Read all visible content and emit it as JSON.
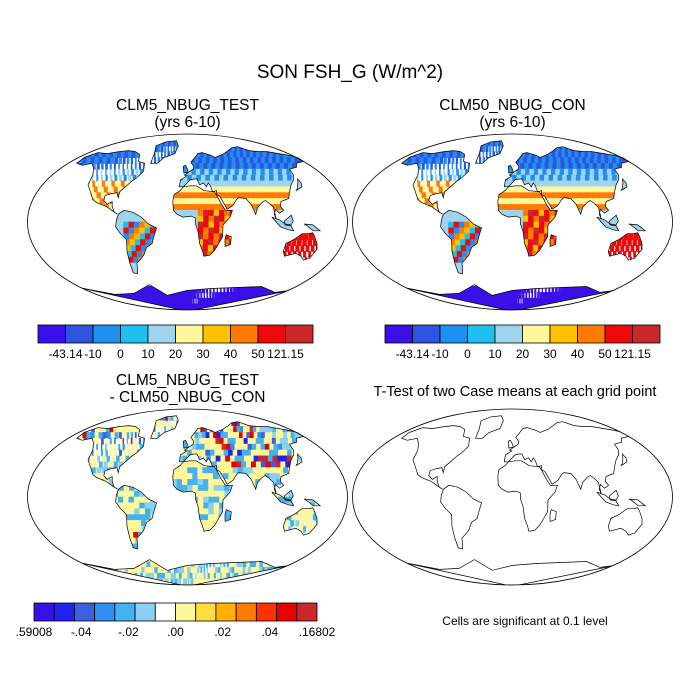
{
  "figure": {
    "title": "SON FSH_G (W/m^2)"
  },
  "panels": [
    {
      "id": "test",
      "title_line1": "CLM5_NBUG_TEST",
      "title_line2": "(yrs 6-10)"
    },
    {
      "id": "control",
      "title_line1": "CLM50_NBUG_CON",
      "title_line2": "(yrs 6-10)"
    },
    {
      "id": "difference",
      "title_line1": "CLM5_NBUG_TEST",
      "title_line2": "- CLM50_NBUG_CON"
    },
    {
      "id": "ttest",
      "title_line1": "T-Test of two Case means at each grid point",
      "caption": "Cells are significant at 0.1 level"
    }
  ],
  "colorbars": {
    "field": {
      "colors": [
        "#3a10e8",
        "#2f54e0",
        "#1e90f0",
        "#1ec0f0",
        "#a0d4ee",
        "#fff79a",
        "#ffc000",
        "#ff7a00",
        "#ee0a0a",
        "#c82828"
      ],
      "labels": [
        "-43.14",
        "-10",
        "0",
        "10",
        "20",
        "30",
        "40",
        "50",
        "121.15"
      ]
    },
    "difference": {
      "colors": [
        "#3a10e8",
        "#2222f0",
        "#3a60e0",
        "#2f8ef0",
        "#44b2f0",
        "#8ad0f2",
        "#ffffff",
        "#fff79a",
        "#ffdc40",
        "#ffb000",
        "#ff7a00",
        "#ff3000",
        "#e80000",
        "#c82828"
      ],
      "labels": [
        ".59008",
        "-.04",
        "-.02",
        ".00",
        ".02",
        ".04",
        ".16802"
      ]
    }
  }
}
